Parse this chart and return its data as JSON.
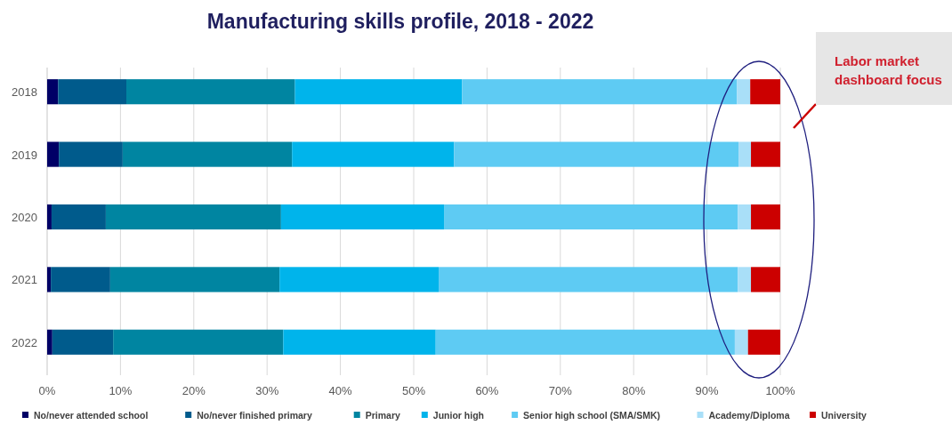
{
  "chart_data": {
    "type": "bar",
    "orientation": "horizontal",
    "stacked": true,
    "title": "Manufacturing skills profile, 2018 - 2022",
    "categories": [
      "2018",
      "2019",
      "2020",
      "2021",
      "2022"
    ],
    "series": [
      {
        "name": "No/never attended school",
        "color": "#000066",
        "values": [
          1.5,
          1.6,
          0.6,
          0.5,
          0.7
        ]
      },
      {
        "name": "No/never finished primary",
        "color": "#005b8c",
        "values": [
          9.3,
          8.7,
          7.4,
          8.1,
          8.3
        ]
      },
      {
        "name": "Primary",
        "color": "#0085a1",
        "values": [
          23.0,
          23.1,
          23.9,
          23.1,
          23.2
        ]
      },
      {
        "name": "Junior high",
        "color": "#00b4eb",
        "values": [
          22.8,
          22.1,
          22.3,
          21.7,
          20.8
        ]
      },
      {
        "name": "Senior high school (SMA/SMK)",
        "color": "#5ecbf3",
        "values": [
          37.5,
          38.8,
          40.0,
          40.8,
          40.8
        ]
      },
      {
        "name": "Academy/Diploma",
        "color": "#a9dff8",
        "values": [
          1.8,
          1.7,
          1.8,
          1.8,
          1.8
        ]
      },
      {
        "name": "University",
        "color": "#cc0000",
        "values": [
          4.1,
          4.0,
          4.0,
          4.0,
          4.4
        ]
      }
    ],
    "xlim": [
      0,
      100
    ],
    "xticks": [
      {
        "value": 0,
        "label": "0%"
      },
      {
        "value": 10,
        "label": "10%"
      },
      {
        "value": 20,
        "label": "20%"
      },
      {
        "value": 30,
        "label": "30%"
      },
      {
        "value": 40,
        "label": "40%"
      },
      {
        "value": 50,
        "label": "50%"
      },
      {
        "value": 60,
        "label": "60%"
      },
      {
        "value": 70,
        "label": "70%"
      },
      {
        "value": 80,
        "label": "80%"
      },
      {
        "value": 90,
        "label": "90%"
      },
      {
        "value": 100,
        "label": "100%"
      }
    ],
    "grid": "x",
    "legend": "bottom",
    "annotations": [
      "Labor market dashboard focus"
    ]
  }
}
